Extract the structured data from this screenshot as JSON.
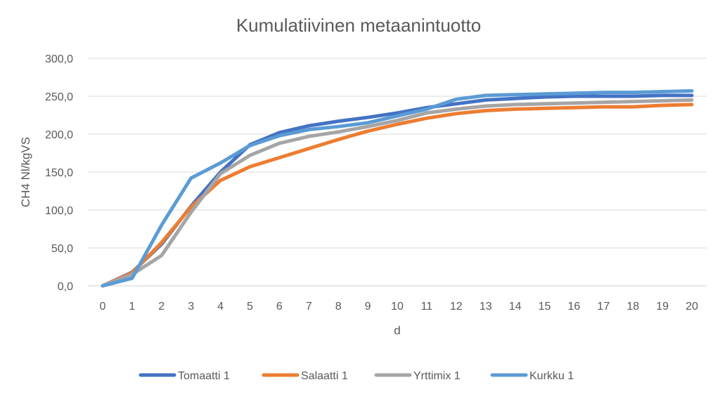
{
  "chart_data": {
    "type": "line",
    "title": "Kumulatiivinen metaanintuotto",
    "xlabel": "d",
    "ylabel": "CH4 Nl/kgVS",
    "ylim": [
      0,
      300
    ],
    "yticks": [
      "0,0",
      "50,0",
      "100,0",
      "150,0",
      "200,0",
      "250,0",
      "300,0"
    ],
    "ytick_values": [
      0,
      50,
      100,
      150,
      200,
      250,
      300
    ],
    "categories": [
      "0",
      "1",
      "2",
      "3",
      "4",
      "5",
      "6",
      "7",
      "8",
      "9",
      "10",
      "11",
      "12",
      "13",
      "14",
      "15",
      "16",
      "17",
      "18",
      "19",
      "20"
    ],
    "grid": "horizontal",
    "legend_position": "bottom",
    "series": [
      {
        "name": "Tomaatti 1",
        "color": "#4472C4",
        "values": [
          0,
          18,
          55,
          105,
          150,
          186,
          202,
          211,
          217,
          222,
          228,
          235,
          240,
          245,
          247,
          249,
          250,
          250,
          250,
          251,
          251
        ]
      },
      {
        "name": "Salaatti 1",
        "color": "#ED7D31",
        "values": [
          0,
          17,
          57,
          104,
          139,
          157,
          169,
          181,
          193,
          204,
          213,
          221,
          227,
          231,
          233,
          234,
          235,
          236,
          236,
          238,
          239
        ]
      },
      {
        "name": "Yrttimix 1",
        "color": "#A5A5A5",
        "values": [
          0,
          15,
          40,
          97,
          148,
          172,
          188,
          197,
          203,
          210,
          218,
          228,
          233,
          237,
          239,
          240,
          241,
          242,
          243,
          244,
          245
        ]
      },
      {
        "name": "Kurkku 1",
        "color": "#5B9BD5",
        "values": [
          0,
          10,
          80,
          142,
          162,
          185,
          198,
          206,
          210,
          215,
          224,
          233,
          246,
          251,
          252,
          253,
          254,
          255,
          255,
          256,
          257
        ]
      }
    ]
  }
}
